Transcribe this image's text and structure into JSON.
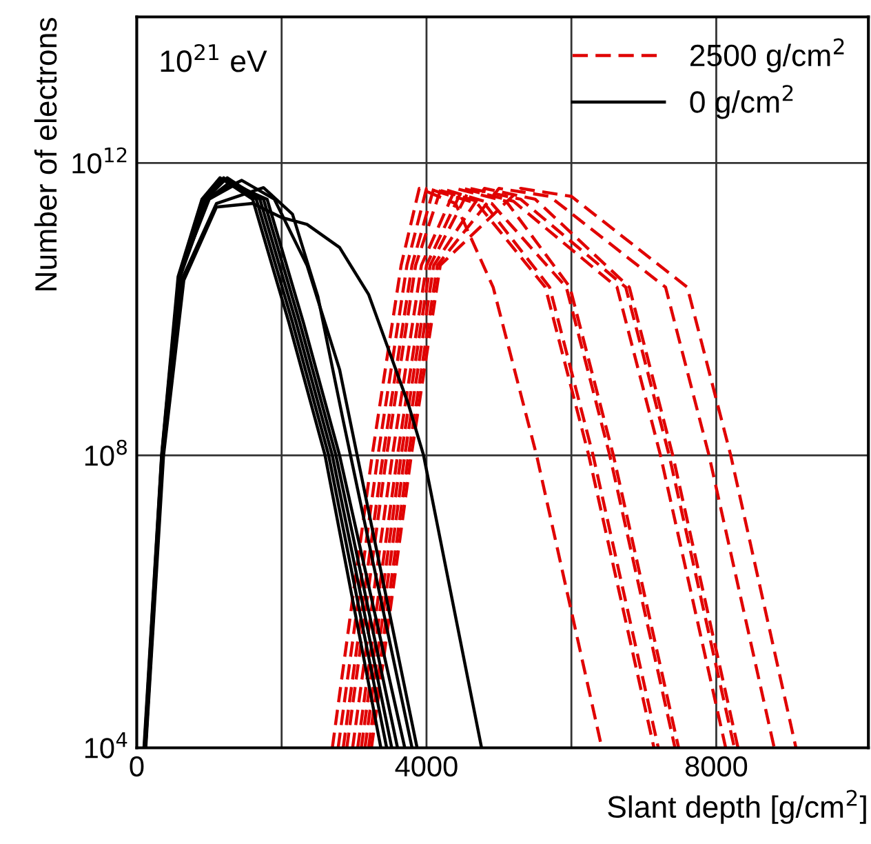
{
  "chart_data": {
    "type": "line",
    "xlabel": "Slant depth [g/cm$^{2}$]",
    "ylabel": "Number of electrons",
    "annotations": [
      "10$^{21}$ eV"
    ],
    "xlim": [
      0,
      10100
    ],
    "xticks": [
      0,
      {
        "value": 2000,
        "label": null
      },
      4000,
      {
        "value": 6000,
        "label": null
      },
      8000
    ],
    "ylim": [
      10000.0,
      100000000000000.0
    ],
    "yticks": [
      {
        "value": 10000.0,
        "label": "10$^{4}$"
      },
      {
        "value": 100000000.0,
        "label": "10$^{8}$"
      },
      {
        "value": 1000000000000.0,
        "label": "10$^{12}$"
      }
    ],
    "log": "y",
    "grid": true,
    "legend": "top right",
    "series": [
      {
        "name": "2500 g/cm$^{2}$",
        "color": "#e00000",
        "line_style": "dashed",
        "x": [
          2700,
          3250,
          3650,
          3900,
          4400,
          4920,
          5520,
          6420
        ],
        "values": [
          10000.0,
          100000000.0,
          40000000000.0,
          450000000000.0,
          280000000000.0,
          20000000000.0,
          100000000.0,
          10000.0
        ]
      },
      {
        "color": "#e00000",
        "line_style": "dashed",
        "x": [
          2780,
          3330,
          3730,
          4000,
          4700,
          5640,
          6240,
          7140
        ],
        "values": [
          10000.0,
          100000000.0,
          40000000000.0,
          450000000000.0,
          280000000000.0,
          20000000000.0,
          100000000.0,
          10000.0
        ]
      },
      {
        "color": "#e00000",
        "line_style": "dashed",
        "x": [
          2850,
          3400,
          3800,
          4100,
          4800,
          5700,
          6300,
          7200
        ],
        "values": [
          10000.0,
          100000000.0,
          40000000000.0,
          450000000000.0,
          280000000000.0,
          20000000000.0,
          100000000.0,
          10000.0
        ]
      },
      {
        "color": "#e00000",
        "line_style": "dashed",
        "x": [
          2900,
          3450,
          3850,
          4200,
          4900,
          5930,
          6530,
          7430
        ],
        "values": [
          10000.0,
          100000000.0,
          40000000000.0,
          450000000000.0,
          280000000000.0,
          20000000000.0,
          100000000.0,
          10000.0
        ]
      },
      {
        "color": "#e00000",
        "line_style": "dashed",
        "x": [
          2980,
          3530,
          3930,
          4400,
          5100,
          5980,
          6580,
          7480
        ],
        "values": [
          10000.0,
          100000000.0,
          40000000000.0,
          450000000000.0,
          300000000000.0,
          20000000000.0,
          100000000.0,
          10000.0
        ]
      },
      {
        "color": "#e00000",
        "line_style": "dashed",
        "x": [
          3050,
          3600,
          4000,
          4500,
          5200,
          6630,
          7230,
          8130
        ],
        "values": [
          10000.0,
          100000000.0,
          40000000000.0,
          450000000000.0,
          300000000000.0,
          20000000000.0,
          100000000.0,
          10000.0
        ]
      },
      {
        "color": "#e00000",
        "line_style": "dashed",
        "x": [
          3100,
          3650,
          4050,
          4600,
          5300,
          6750,
          7350,
          8250
        ],
        "values": [
          10000.0,
          100000000.0,
          40000000000.0,
          450000000000.0,
          320000000000.0,
          20000000000.0,
          100000000.0,
          10000.0
        ]
      },
      {
        "color": "#e00000",
        "line_style": "dashed",
        "x": [
          3150,
          3700,
          4100,
          4800,
          5500,
          6800,
          7400,
          8300
        ],
        "values": [
          10000.0,
          100000000.0,
          40000000000.0,
          450000000000.0,
          320000000000.0,
          20000000000.0,
          100000000.0,
          10000.0
        ]
      },
      {
        "color": "#e00000",
        "line_style": "dashed",
        "x": [
          3200,
          3750,
          4150,
          5000,
          5700,
          7300,
          7900,
          8800
        ],
        "values": [
          10000.0,
          100000000.0,
          40000000000.0,
          450000000000.0,
          350000000000.0,
          20000000000.0,
          100000000.0,
          10000.0
        ]
      },
      {
        "color": "#e00000",
        "line_style": "dashed",
        "x": [
          3240,
          3790,
          4190,
          5300,
          6000,
          7600,
          8200,
          9100
        ],
        "values": [
          10000.0,
          100000000.0,
          40000000000.0,
          450000000000.0,
          350000000000.0,
          20000000000.0,
          100000000.0,
          10000.0
        ]
      },
      {
        "name": "0 g/cm$^{2}$",
        "color": "#000000",
        "line_style": "solid",
        "x": [
          100,
          343,
          571,
          900,
          1150,
          1600,
          2100,
          2600,
          3370
        ],
        "values": [
          10000.0,
          100000000.0,
          28000000000.0,
          320000000000.0,
          630000000000.0,
          320000000000.0,
          6600000000.0,
          100000000.0,
          10000.0
        ]
      },
      {
        "color": "#000000",
        "line_style": "solid",
        "x": [
          120,
          360,
          600,
          920,
          1200,
          1650,
          2150,
          2650,
          3450
        ],
        "values": [
          10000.0,
          100000000.0,
          28000000000.0,
          320000000000.0,
          630000000000.0,
          320000000000.0,
          6600000000.0,
          100000000.0,
          10000.0
        ]
      },
      {
        "color": "#000000",
        "line_style": "solid",
        "x": [
          110,
          350,
          590,
          950,
          1250,
          1700,
          2200,
          2700,
          3520
        ],
        "values": [
          10000.0,
          100000000.0,
          28000000000.0,
          320000000000.0,
          630000000000.0,
          320000000000.0,
          6600000000.0,
          100000000.0,
          10000.0
        ]
      },
      {
        "color": "#000000",
        "line_style": "solid",
        "x": [
          115,
          355,
          600,
          980,
          1300,
          1750,
          2250,
          2750,
          3600
        ],
        "values": [
          10000.0,
          100000000.0,
          28000000000.0,
          320000000000.0,
          560000000000.0,
          320000000000.0,
          6600000000.0,
          100000000.0,
          10000.0
        ]
      },
      {
        "color": "#000000",
        "line_style": "solid",
        "x": [
          105,
          345,
          580,
          1000,
          1350,
          1800,
          2300,
          2800,
          3700
        ],
        "values": [
          10000.0,
          100000000.0,
          28000000000.0,
          320000000000.0,
          500000000000.0,
          320000000000.0,
          6600000000.0,
          100000000.0,
          10000.0
        ]
      },
      {
        "color": "#000000",
        "line_style": "solid",
        "x": [
          120,
          360,
          620,
          1100,
          1750,
          2150,
          2500,
          2850,
          3800
        ],
        "values": [
          10000.0,
          100000000.0,
          25000000000.0,
          280000000000.0,
          460000000000.0,
          200000000000.0,
          15000000000.0,
          300000000.0,
          10000.0
        ]
      },
      {
        "color": "#000000",
        "line_style": "solid",
        "x": [
          125,
          370,
          650,
          1100,
          1600,
          2000,
          2350,
          2800,
          3200,
          3750,
          3960,
          4760
        ],
        "values": [
          10000.0,
          100000000.0,
          25000000000.0,
          250000000000.0,
          280000000000.0,
          180000000000.0,
          145000000000.0,
          70000000000.0,
          16000000000.0,
          500000000.0,
          100000000.0,
          10000.0
        ]
      },
      {
        "color": "#000000",
        "line_style": "solid",
        "x": [
          110,
          350,
          590,
          1000,
          1450,
          1900,
          2350,
          2800,
          3870
        ],
        "values": [
          10000.0,
          100000000.0,
          28000000000.0,
          350000000000.0,
          580000000000.0,
          320000000000.0,
          40000000000.0,
          1500000000.0,
          10000.0
        ]
      }
    ]
  }
}
